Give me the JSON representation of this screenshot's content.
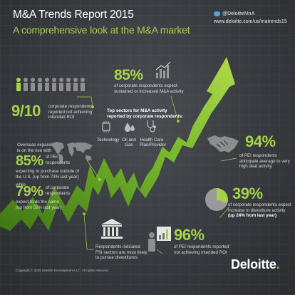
{
  "header": {
    "title": "M&A Trends Report 2015",
    "subtitle": "A comprehensive look at the M&A market",
    "twitter_handle": "@DeloitteMnA",
    "url": "www.deloitte.com/us/matrends15"
  },
  "stats": {
    "s1": {
      "value": "85%",
      "text_a": "of corporate respondents expect",
      "text_b": "sustained or increased M&A activity"
    },
    "s2": {
      "value": "9/10",
      "text_a": "corporate respondents",
      "text_b": "reported not achieving",
      "text_c": "intended ROI"
    },
    "s3": {
      "intro_a": "Overseas expansion",
      "intro_b": "is on the rise with",
      "value": "85%",
      "text_a": "of PEI",
      "text_b": "respondents",
      "text_c": "expecting to purchase outside of",
      "text_d": "the U.S. (up from 73% last year)",
      "while": "while"
    },
    "s4": {
      "value": "79%",
      "text_a": "of corporate",
      "text_b": "respondents",
      "text_c": "expect to do the same",
      "text_d": "(up from 59% last year)"
    },
    "s5": {
      "value": "94%",
      "text_a": "of PEI respondents",
      "text_b": "anticipate average to very",
      "text_c": "high deal activity"
    },
    "s6": {
      "value": "39%",
      "text_a": "of corporate respondents expect",
      "text_b": "increase in divestiture activity",
      "text_c": "(up 24% from last year)"
    },
    "s7": {
      "value": "96%",
      "text_a": "of PEI respondents reported",
      "text_b": "not achieving intended ROI"
    },
    "s8": {
      "text_a": "Respondents indicated",
      "text_b": "FSI sectors are most likely",
      "text_c": "to pursue divestitures"
    }
  },
  "sectors": {
    "heading_a": "Top sectors for M&A activity",
    "heading_b": "reported by corporate respondents:",
    "items": [
      {
        "label": "Technology",
        "icon": "chip-icon"
      },
      {
        "label": "Oil and Gas",
        "icon": "oil-drops-icon"
      },
      {
        "label": "Health Care",
        "label2": "Plan/Provider",
        "icon": "stethoscope-icon"
      }
    ]
  },
  "footer": {
    "copyright": "Copyright © 2015 Deloitte Development LLC. All rights reserved.",
    "logo": "Deloitte",
    "logo_dot": "."
  },
  "colors": {
    "accent": "#a6d24a",
    "background": "#3a3d41",
    "brand": "#86bc25"
  }
}
